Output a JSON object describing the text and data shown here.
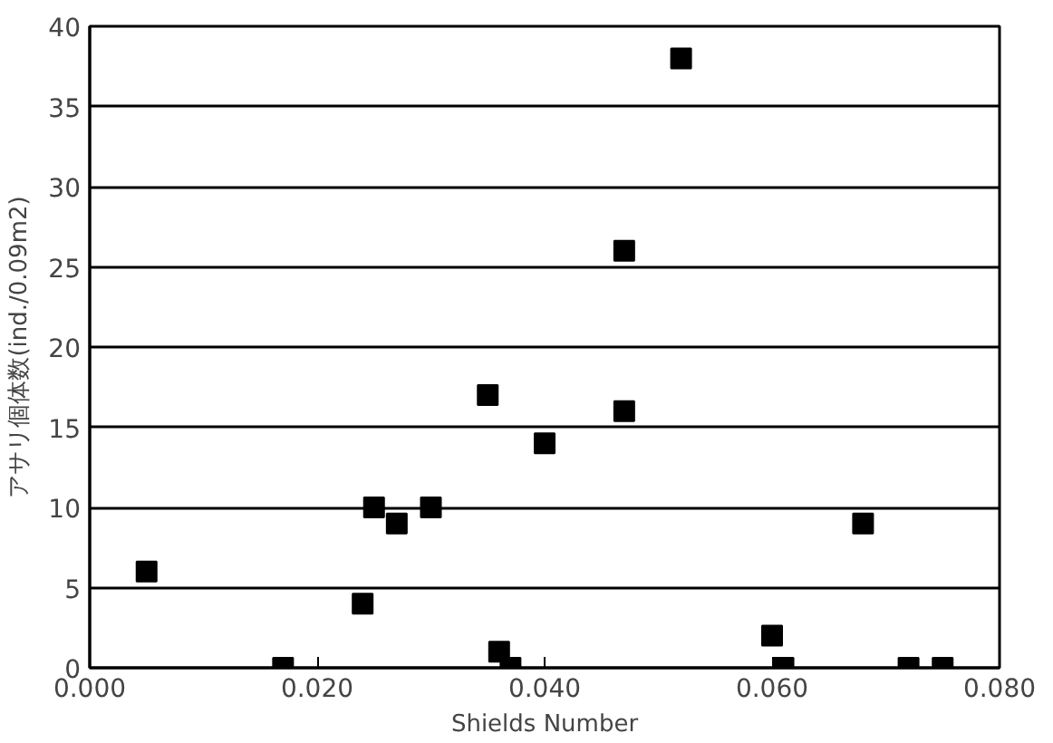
{
  "chart_data": {
    "type": "scatter",
    "xlabel": "Shields Number",
    "ylabel": "アサリ個体数(ind./0.09m2)",
    "x": [
      0.005,
      0.017,
      0.024,
      0.025,
      0.027,
      0.03,
      0.035,
      0.036,
      0.037,
      0.04,
      0.047,
      0.047,
      0.052,
      0.06,
      0.061,
      0.068,
      0.072,
      0.075
    ],
    "series": [
      {
        "color": "#000000",
        "values": [
          6,
          0,
          4,
          10,
          9,
          10,
          17,
          1,
          0,
          14,
          26,
          16,
          38,
          2,
          0,
          9,
          0,
          0
        ]
      }
    ],
    "marker": "square",
    "xlim": [
      0,
      0.08
    ],
    "ylim": [
      0,
      40
    ],
    "xticks": [
      {
        "value": 0,
        "label": "0.000"
      },
      {
        "value": 0.02,
        "label": "0.020"
      },
      {
        "value": 0.04,
        "label": "0.040"
      },
      {
        "value": 0.06,
        "label": "0.060"
      },
      {
        "value": 0.08,
        "label": "0.080"
      }
    ],
    "yticks": [
      0,
      5,
      10,
      15,
      20,
      25,
      30,
      35,
      40
    ],
    "grid": "y"
  }
}
